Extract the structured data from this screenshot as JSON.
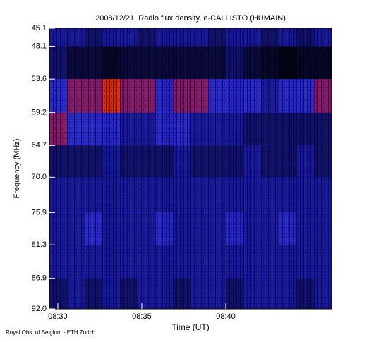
{
  "chart_data": {
    "type": "heatmap",
    "title": "2008/12/21  Radio flux density, e-CALLISTO (HUMAIN)",
    "x_label": "Time (UT)",
    "y_label": "Frequency (MHz)",
    "footer": "Royal Obs. of Belgium - ETH Zurich",
    "xlim": [
      509.5,
      526.3
    ],
    "xticks": [
      {
        "value": 510,
        "label": "08:30"
      },
      {
        "value": 515,
        "label": "08:35"
      },
      {
        "value": 520,
        "label": "08:40"
      }
    ],
    "ylim": [
      45.1,
      92.0
    ],
    "y_reversed": true,
    "yticks": [
      45.1,
      48.1,
      53.6,
      59.2,
      64.7,
      {
        "value": 70,
        "label": "70.0"
      },
      75.9,
      81.3,
      86.9,
      {
        "value": 92,
        "label": "92.0"
      }
    ],
    "x_bins": [
      509.5,
      510.55,
      511.6,
      512.65,
      513.7,
      514.75,
      515.8,
      516.85,
      517.9,
      518.95,
      520.0,
      521.05,
      522.1,
      523.15,
      524.2,
      525.25,
      526.3
    ],
    "y_bins": [
      45.1,
      48.1,
      53.6,
      59.2,
      64.7,
      70.0,
      75.9,
      81.3,
      86.9,
      92.0
    ],
    "z": [
      [
        5,
        5,
        4,
        5,
        5,
        4,
        5,
        5,
        5,
        4,
        5,
        5,
        4,
        5,
        4,
        5
      ],
      [
        4,
        3,
        3,
        2,
        3,
        3,
        3,
        3,
        3,
        3,
        4,
        3,
        2,
        1,
        2,
        2
      ],
      [
        6,
        7,
        7,
        8,
        7,
        7,
        6,
        7,
        7,
        6,
        6,
        6,
        5,
        6,
        6,
        7
      ],
      [
        7,
        6,
        6,
        6,
        5,
        5,
        6,
        6,
        5,
        5,
        5,
        4,
        4,
        4,
        4,
        4
      ],
      [
        4,
        4,
        4,
        5,
        4,
        4,
        4,
        5,
        4,
        4,
        4,
        5,
        4,
        4,
        5,
        4
      ],
      [
        5,
        5,
        5,
        5,
        5,
        5,
        5,
        5,
        5,
        5,
        5,
        5,
        5,
        5,
        5,
        5
      ],
      [
        5,
        5,
        6,
        5,
        5,
        5,
        6,
        5,
        5,
        5,
        6,
        5,
        5,
        6,
        5,
        5
      ],
      [
        5,
        5,
        5,
        5,
        5,
        5,
        5,
        5,
        5,
        5,
        5,
        5,
        5,
        5,
        5,
        5
      ],
      [
        4,
        5,
        4,
        5,
        4,
        5,
        5,
        4,
        5,
        5,
        4,
        5,
        5,
        5,
        4,
        5
      ]
    ]
  }
}
